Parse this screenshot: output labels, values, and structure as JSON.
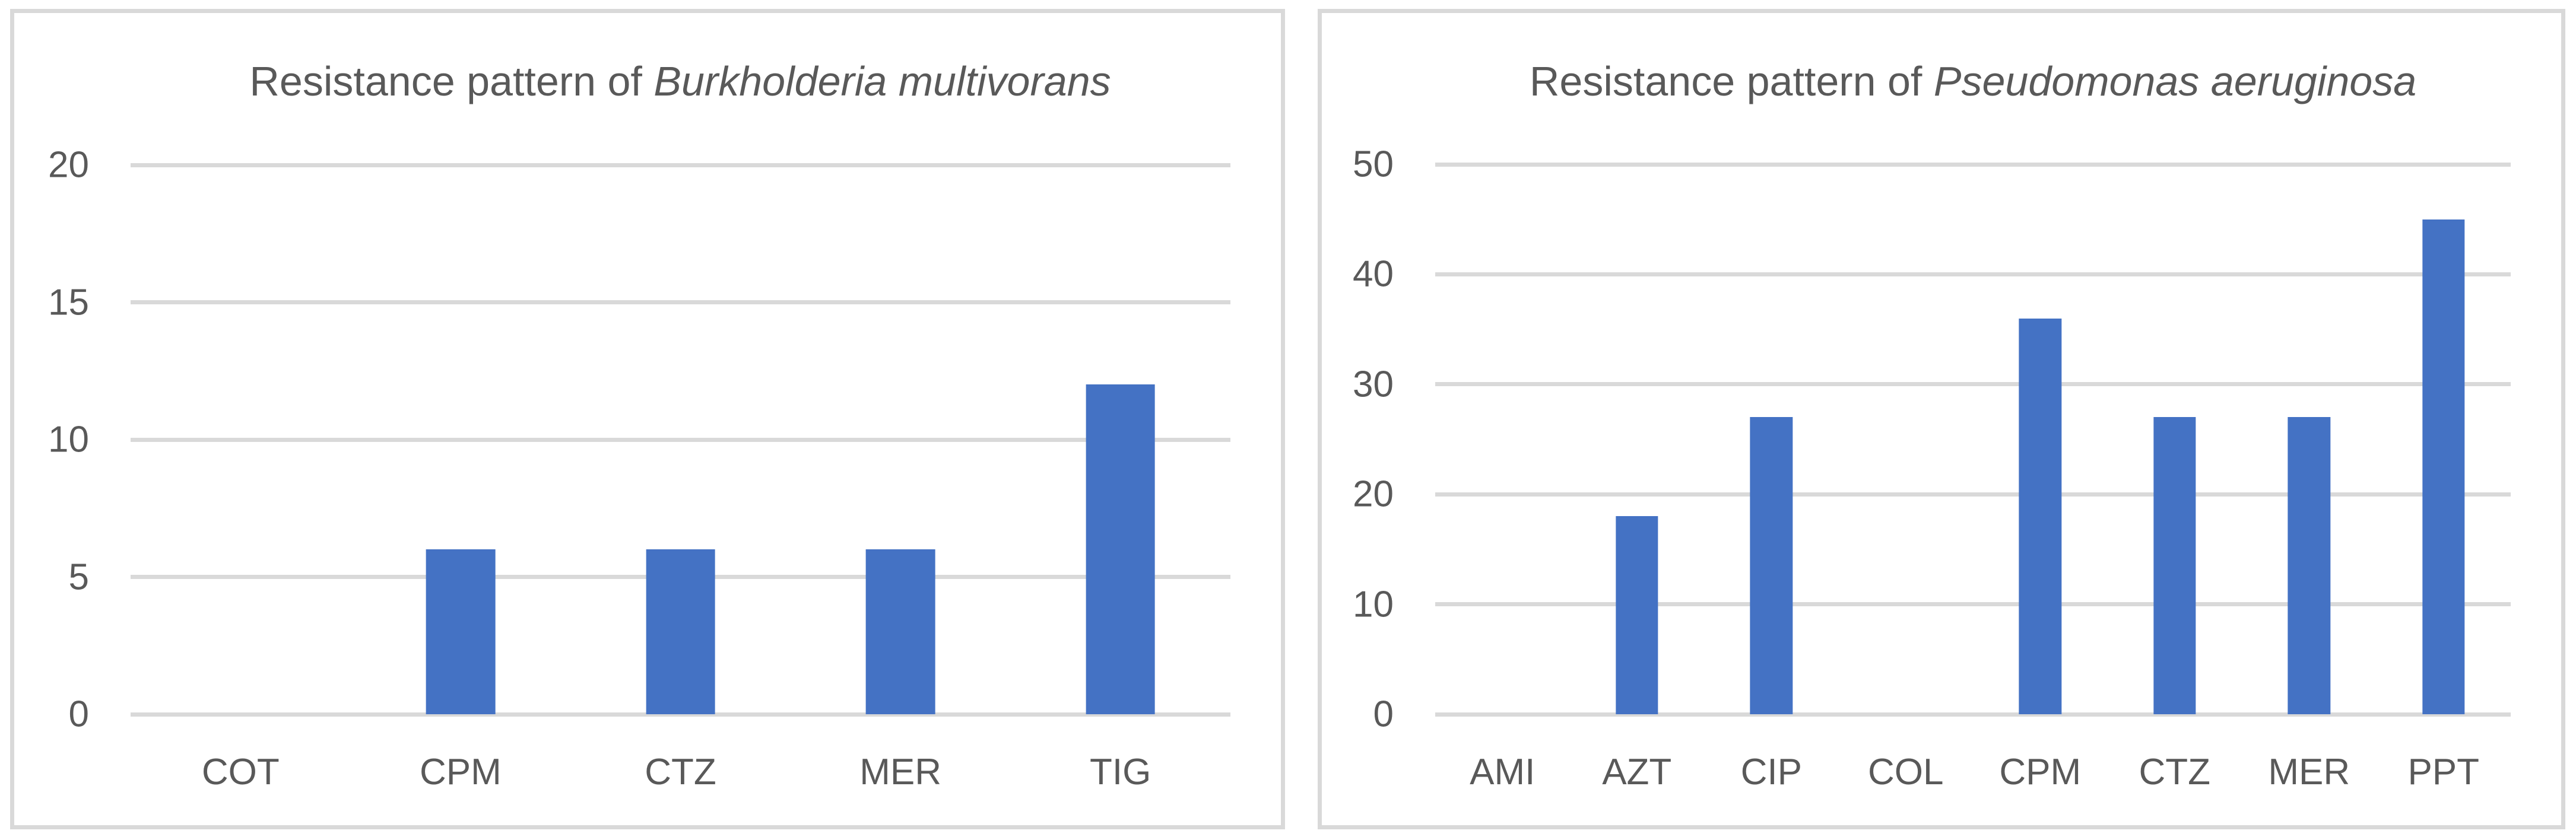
{
  "page": {
    "background": "#FFFFFF"
  },
  "colors": {
    "bar": "#4472C4",
    "gridline": "#D9D9D9",
    "panel_border": "#D9D9D9",
    "text": "#595959"
  },
  "chart_data": [
    {
      "type": "bar",
      "title": "Resistance pattern of Burkholderia multivorans",
      "title_prefix": "Resistance pattern of ",
      "title_species_italic": "Burkholderia multivorans",
      "categories": [
        "COT",
        "CPM",
        "CTZ",
        "MER",
        "TIG"
      ],
      "values": [
        0,
        6,
        6,
        6,
        12
      ],
      "yticks": [
        0,
        5,
        10,
        15,
        20
      ],
      "ylim": [
        0,
        20
      ],
      "xlabel": "",
      "ylabel": "",
      "grid": true,
      "legend_position": "none",
      "bar_color": "#4472C4"
    },
    {
      "type": "bar",
      "title": "Resistance pattern of Pseudomonas aeruginosa",
      "title_prefix": "Resistance pattern of ",
      "title_species_italic": "Pseudomonas aeruginosa",
      "categories": [
        "AMI",
        "AZT",
        "CIP",
        "COL",
        "CPM",
        "CTZ",
        "MER",
        "PPT"
      ],
      "values": [
        0,
        18,
        27,
        0,
        36,
        27,
        27,
        45
      ],
      "yticks": [
        0,
        10,
        20,
        30,
        40,
        50
      ],
      "ylim": [
        0,
        50
      ],
      "xlabel": "",
      "ylabel": "",
      "grid": true,
      "legend_position": "none",
      "bar_color": "#4472C4"
    }
  ]
}
